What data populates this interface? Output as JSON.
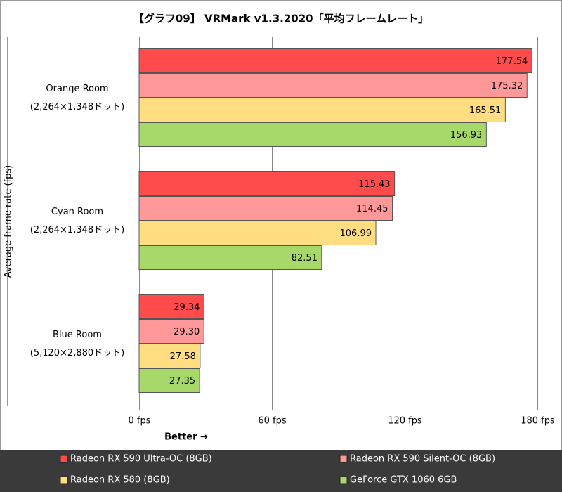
{
  "chart_data": {
    "type": "barh",
    "title": "【グラフ09】 VRMark v1.3.2020「平均フレームレート」",
    "y_label": "Average frame rate (fps)",
    "annotation": "Better →",
    "categories": [
      "Orange Room",
      "Cyan Room",
      "Blue Room"
    ],
    "category_resolutions": [
      "(2,264×1,348ドット)",
      "(2,264×1,348ドット)",
      "(5,120×2,880ドット)"
    ],
    "series": [
      {
        "name": "Radeon RX 590 Ultra-OC (8GB)",
        "color": "#ff4b4b",
        "values": [
          177.54,
          115.43,
          29.34
        ],
        "value_labels": [
          "177.54",
          "115.43",
          "29.34"
        ]
      },
      {
        "name": "Radeon RX 590 Silent-OC (8GB)",
        "color": "#ff9999",
        "values": [
          175.32,
          114.45,
          29.3
        ],
        "value_labels": [
          "175.32",
          "114.45",
          "29.30"
        ]
      },
      {
        "name": "Radeon RX 580 (8GB)",
        "color": "#ffdd80",
        "values": [
          165.51,
          106.99,
          27.58
        ],
        "value_labels": [
          "165.51",
          "106.99",
          "27.58"
        ]
      },
      {
        "name": "GeForce GTX 1060 6GB",
        "color": "#a6d96a",
        "values": [
          156.93,
          82.51,
          27.35
        ],
        "value_labels": [
          "156.93",
          "82.51",
          "27.35"
        ]
      }
    ],
    "xlim": [
      0,
      180
    ],
    "xticks": [
      {
        "value": 0,
        "label": "0 fps"
      },
      {
        "value": 60,
        "label": "60 fps"
      },
      {
        "value": 120,
        "label": "120 fps"
      },
      {
        "value": 180,
        "label": "180 fps"
      }
    ],
    "grid": true
  }
}
